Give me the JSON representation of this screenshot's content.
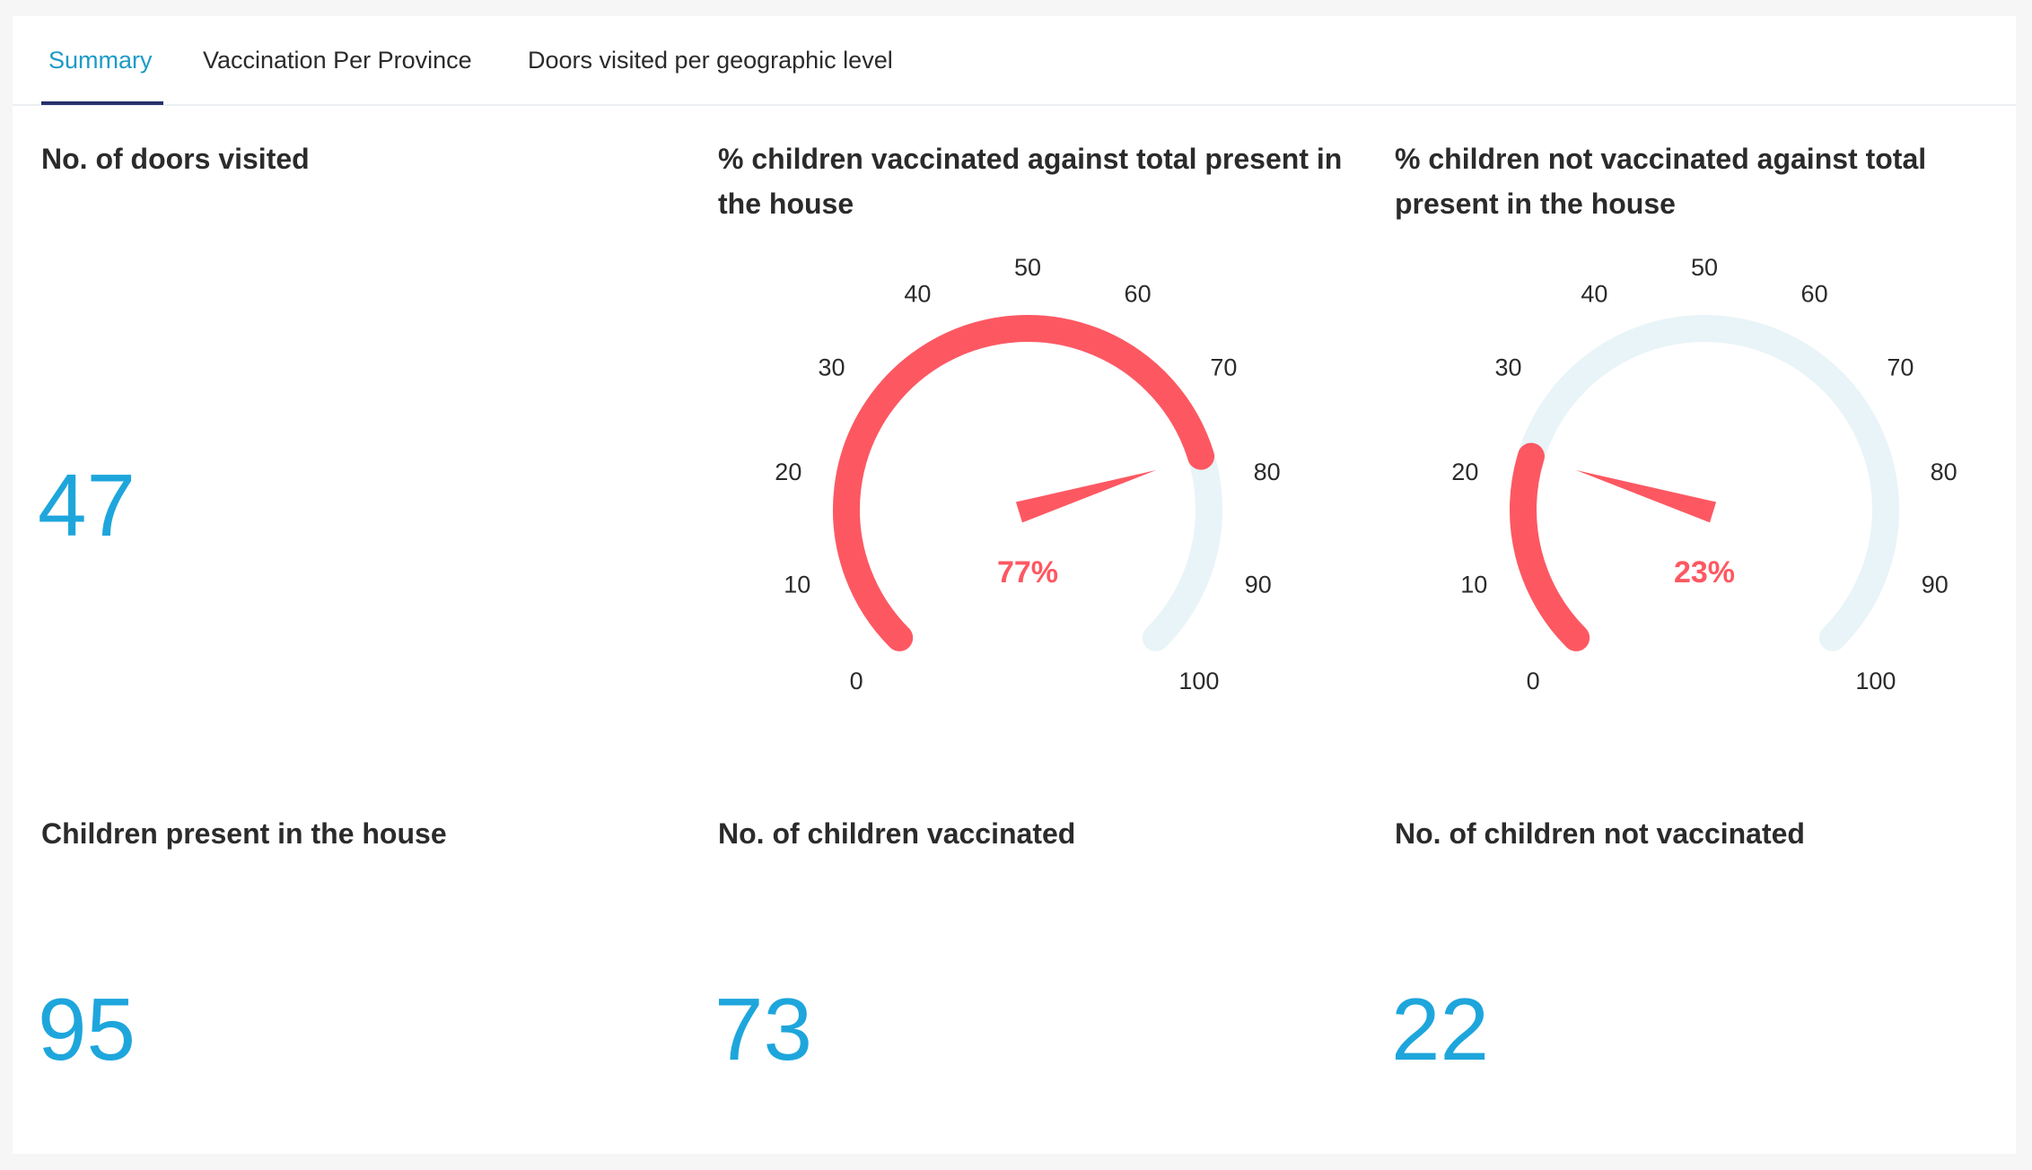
{
  "tabs": [
    {
      "label": "Summary",
      "active": true
    },
    {
      "label": "Vaccination Per Province",
      "active": false
    },
    {
      "label": "Doors visited per geographic level",
      "active": false
    }
  ],
  "tiles": {
    "doors_visited": {
      "title": "No. of doors visited",
      "value": "47"
    },
    "children_present": {
      "title": "Children present in the house",
      "value": "95"
    },
    "children_vaccinated": {
      "title": "No. of children vaccinated",
      "value": "73"
    },
    "children_not_vaccinated": {
      "title": "No. of children not vaccinated",
      "value": "22"
    }
  },
  "gauges": [
    {
      "title": "% children vaccinated against total present in the house",
      "value": 77,
      "value_label": "77%"
    },
    {
      "title": "% children not vaccinated against total present in the house",
      "value": 23,
      "value_label": "23%"
    }
  ],
  "gauge_ticks": [
    "0",
    "10",
    "20",
    "30",
    "40",
    "50",
    "60",
    "70",
    "80",
    "90",
    "100"
  ],
  "colors": {
    "accent": "#1c9bc7",
    "big_number": "#1ea6dc",
    "gauge_fill": "#fd5862",
    "gauge_track": "#e8f4f8",
    "tab_underline": "#27306b"
  }
}
